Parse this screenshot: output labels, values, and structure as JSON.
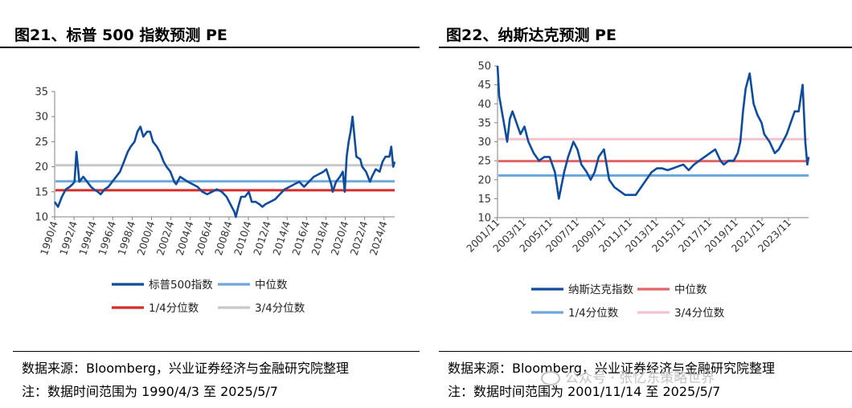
{
  "charts": [
    {
      "title": "图21、标普 500 指数预测 PE",
      "source": "数据来源：Bloomberg，兴业证券经济与金融研究院整理",
      "note": "注：数据时间范围为 1990/4/3 至 2025/5/7",
      "chart_data": {
        "type": "line",
        "xlabel": "",
        "ylabel": "",
        "ylim": [
          10,
          35
        ],
        "yticks": [
          10,
          15,
          20,
          25,
          30,
          35
        ],
        "xlim": [
          1990.25,
          2025.35
        ],
        "xticks": [
          "1990/4",
          "1992/4",
          "1994/4",
          "1996/4",
          "1998/4",
          "2000/4",
          "2002/4",
          "2004/4",
          "2006/4",
          "2008/4",
          "2010/4",
          "2012/4",
          "2014/4",
          "2016/4",
          "2018/4",
          "2020/4",
          "2022/4",
          "2024/4"
        ],
        "grid": false,
        "legend_position": "bottom",
        "series": [
          {
            "name": "标普500指数",
            "color": "#0f4c9c",
            "style": "series",
            "x": [
              1990.25,
              1990.6,
              1991.0,
              1991.4,
              1991.8,
              1992.1,
              1992.3,
              1992.5,
              1992.8,
              1993.2,
              1993.6,
              1994.0,
              1994.3,
              1994.7,
              1995.0,
              1995.4,
              1995.8,
              1996.2,
              1996.6,
              1997.0,
              1997.4,
              1997.8,
              1998.1,
              1998.5,
              1998.8,
              1999.1,
              1999.4,
              1999.8,
              2000.1,
              2000.4,
              2000.8,
              2001.1,
              2001.5,
              2001.8,
              2002.2,
              2002.6,
              2002.8,
              2003.2,
              2003.6,
              2004.0,
              2004.5,
              2005.0,
              2005.5,
              2006.0,
              2006.5,
              2007.0,
              2007.5,
              2008.0,
              2008.4,
              2008.8,
              2008.95,
              2009.2,
              2009.5,
              2009.9,
              2010.3,
              2010.6,
              2011.0,
              2011.4,
              2011.7,
              2012.0,
              2012.5,
              2013.0,
              2013.5,
              2014.0,
              2014.5,
              2015.0,
              2015.5,
              2016.0,
              2016.5,
              2017.0,
              2017.5,
              2018.0,
              2018.3,
              2018.8,
              2018.95,
              2019.3,
              2019.7,
              2020.0,
              2020.2,
              2020.4,
              2020.6,
              2020.8,
              2021.0,
              2021.4,
              2021.8,
              2022.0,
              2022.4,
              2022.8,
              2023.0,
              2023.4,
              2023.8,
              2024.1,
              2024.4,
              2024.8,
              2025.0,
              2025.2,
              2025.35
            ],
            "y": [
              13,
              12,
              14,
              15.5,
              16,
              16.5,
              17,
              23,
              17,
              18,
              17,
              16,
              15.5,
              15,
              14.5,
              15.5,
              16,
              17,
              18,
              19,
              21,
              23,
              24,
              25,
              27,
              28,
              26,
              27,
              27,
              25,
              24,
              23,
              21,
              20,
              19,
              17,
              16.5,
              18,
              17.5,
              17,
              16.5,
              16,
              15,
              14.5,
              15,
              15.5,
              15,
              14,
              12.5,
              11,
              10,
              12,
              14,
              14,
              15,
              13,
              13,
              12.5,
              12,
              12.5,
              13,
              13.5,
              14.5,
              15.5,
              16,
              16.5,
              17,
              16,
              17,
              18,
              18.5,
              19,
              19.5,
              16.5,
              15,
              17,
              18,
              19,
              15,
              22,
              25,
              27,
              30,
              22,
              21.5,
              20,
              19,
              17,
              18,
              19.5,
              19,
              21,
              22,
              22,
              24,
              20,
              21
            ]
          },
          {
            "name": "中位数",
            "color": "#6fa8dc",
            "style": "hline",
            "value": 17.1
          },
          {
            "name": "1/4分位数",
            "color": "#d62b2b",
            "style": "hline",
            "value": 15.3
          },
          {
            "name": "3/4分位数",
            "color": "#c8c8c8",
            "style": "hline",
            "value": 20.3
          }
        ]
      }
    },
    {
      "title": "图22、纳斯达克预测 PE",
      "source": "数据来源：Bloomberg，兴业证券经济与金融研究院整理",
      "note": "注：数据时间范围为 2001/11/14 至 2025/5/7",
      "chart_data": {
        "type": "line",
        "xlabel": "",
        "ylabel": "",
        "ylim": [
          10,
          50
        ],
        "yticks": [
          10,
          15,
          20,
          25,
          30,
          35,
          40,
          45,
          50
        ],
        "xlim": [
          2001.87,
          2025.35
        ],
        "xticks": [
          "2001/11",
          "2003/11",
          "2005/11",
          "2007/11",
          "2009/11",
          "2011/11",
          "2013/11",
          "2015/11",
          "2017/11",
          "2019/11",
          "2021/11",
          "2023/11"
        ],
        "grid": false,
        "legend_position": "bottom",
        "series": [
          {
            "name": "纳斯达克指数",
            "color": "#0f4c9c",
            "style": "series",
            "x": [
              2001.87,
              2002.0,
              2002.2,
              2002.4,
              2002.6,
              2002.8,
              2003.0,
              2003.3,
              2003.6,
              2003.9,
              2004.2,
              2004.6,
              2005.0,
              2005.4,
              2005.8,
              2006.2,
              2006.5,
              2006.9,
              2007.2,
              2007.6,
              2007.9,
              2008.2,
              2008.6,
              2008.9,
              2009.2,
              2009.5,
              2009.9,
              2010.3,
              2010.7,
              2011.1,
              2011.5,
              2011.9,
              2012.3,
              2012.7,
              2013.1,
              2013.5,
              2013.9,
              2014.3,
              2014.7,
              2015.1,
              2015.5,
              2015.9,
              2016.3,
              2016.7,
              2017.1,
              2017.5,
              2017.9,
              2018.3,
              2018.7,
              2018.95,
              2019.3,
              2019.7,
              2020.0,
              2020.2,
              2020.4,
              2020.6,
              2020.9,
              2021.2,
              2021.5,
              2021.8,
              2022.0,
              2022.4,
              2022.8,
              2023.1,
              2023.4,
              2023.7,
              2024.0,
              2024.3,
              2024.6,
              2024.9,
              2025.1,
              2025.25,
              2025.35
            ],
            "y": [
              50,
              42,
              38,
              34,
              30,
              36,
              38,
              35,
              32,
              34,
              30,
              27,
              25,
              26,
              26,
              22,
              15,
              22,
              26,
              30,
              28,
              24,
              22,
              20,
              22,
              26,
              28,
              20,
              18,
              17,
              16,
              16,
              16,
              18,
              20,
              22,
              23,
              23,
              22.5,
              23,
              23.5,
              24,
              22.5,
              24,
              25,
              26,
              27,
              28,
              25,
              24,
              25,
              25,
              27,
              30,
              38,
              44,
              48,
              40,
              37,
              35,
              32,
              30,
              27,
              28,
              30,
              32,
              35,
              38,
              38,
              45,
              30,
              24,
              26
            ]
          },
          {
            "name": "中位数",
            "color": "#e06666",
            "style": "hline",
            "value": 24.9
          },
          {
            "name": "1/4分位数",
            "color": "#6fa8dc",
            "style": "hline",
            "value": 21.1
          },
          {
            "name": "3/4分位数",
            "color": "#f4c2cc",
            "style": "hline",
            "value": 30.7
          }
        ]
      }
    }
  ],
  "watermark": "公众号 · 张忆东策略世界"
}
